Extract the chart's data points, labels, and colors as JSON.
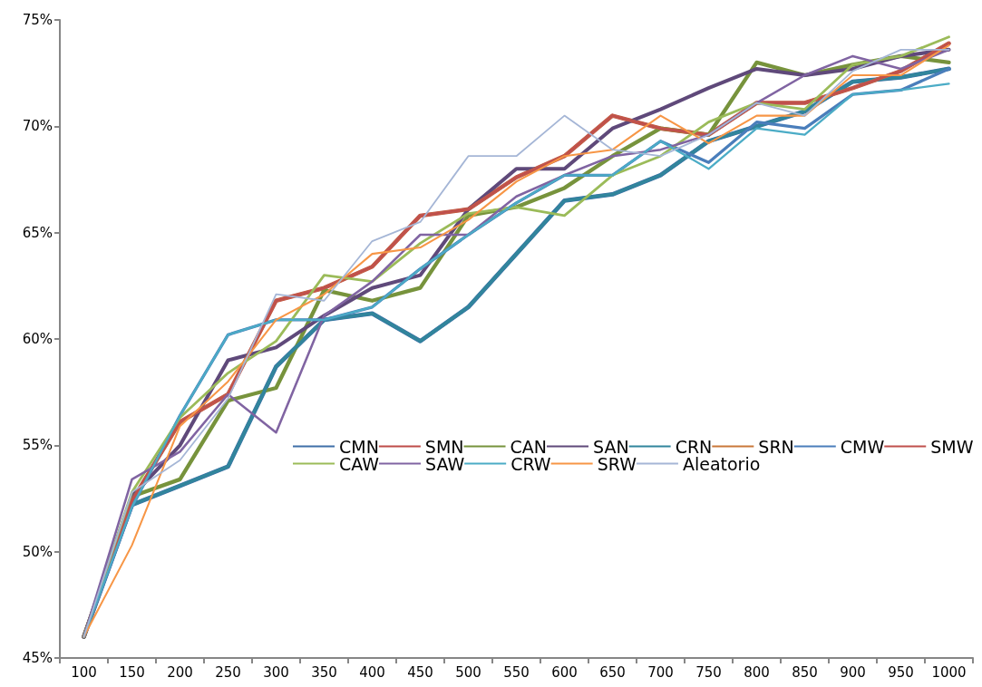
{
  "chart_data": {
    "type": "line",
    "categories": [
      "100",
      "150",
      "200",
      "250",
      "300",
      "350",
      "400",
      "450",
      "500",
      "550",
      "600",
      "650",
      "700",
      "750",
      "800",
      "850",
      "900",
      "950",
      "1000"
    ],
    "ylim": [
      45,
      75
    ],
    "yticks": [
      {
        "value": 45,
        "label": "45%"
      },
      {
        "value": 50,
        "label": "50%"
      },
      {
        "value": 55,
        "label": "55%"
      },
      {
        "value": 60,
        "label": "60%"
      },
      {
        "value": 65,
        "label": "65%"
      },
      {
        "value": 70,
        "label": "70%"
      },
      {
        "value": 75,
        "label": "75%"
      }
    ],
    "grid": false,
    "legend": "bottom",
    "marker": "none",
    "line_style": "solid",
    "series": [
      {
        "name": "CMN",
        "color": "#3f6fa8",
        "values": [
          46.0,
          52.2,
          53.1,
          54.0,
          58.7,
          60.9,
          61.2,
          59.9,
          61.5,
          64.0,
          66.5,
          66.8,
          67.7,
          69.3,
          70.0,
          70.7,
          72.1,
          72.3,
          72.7
        ]
      },
      {
        "name": "SMN",
        "color": "#be4b48",
        "values": [
          46.0,
          52.4,
          56.1,
          57.4,
          61.8,
          62.4,
          63.4,
          65.8,
          66.1,
          67.6,
          68.6,
          70.5,
          69.9,
          69.6,
          71.1,
          71.1,
          71.8,
          72.6,
          73.9
        ]
      },
      {
        "name": "CAN",
        "color": "#77933c",
        "values": [
          46.0,
          52.6,
          53.4,
          57.1,
          57.7,
          62.3,
          61.8,
          62.4,
          65.8,
          66.2,
          67.1,
          68.6,
          69.9,
          69.6,
          73.0,
          72.4,
          72.9,
          73.3,
          73.0
        ]
      },
      {
        "name": "SAN",
        "color": "#5f497a",
        "values": [
          46.0,
          52.6,
          55.0,
          59.0,
          59.6,
          61.1,
          62.4,
          63.0,
          66.1,
          68.0,
          68.0,
          69.9,
          70.8,
          71.8,
          72.7,
          72.4,
          72.7,
          73.3,
          73.6
        ]
      },
      {
        "name": "CRN",
        "color": "#31859c",
        "values": [
          46.0,
          52.2,
          53.1,
          54.0,
          58.7,
          60.9,
          61.2,
          59.9,
          61.5,
          64.0,
          66.5,
          66.8,
          67.7,
          69.3,
          70.0,
          70.7,
          72.1,
          72.3,
          72.7
        ]
      },
      {
        "name": "SRN",
        "color": "#c9783a",
        "values": [
          46.0,
          52.4,
          56.1,
          57.4,
          61.8,
          62.4,
          63.4,
          65.8,
          66.1,
          67.6,
          68.6,
          70.5,
          69.9,
          69.6,
          71.1,
          71.1,
          71.8,
          72.6,
          73.9
        ]
      },
      {
        "name": "CMW",
        "color": "#4a7ebb",
        "values": [
          46.0,
          52.1,
          56.4,
          60.2,
          60.9,
          60.9,
          61.5,
          63.3,
          64.9,
          66.4,
          67.7,
          67.7,
          69.3,
          68.3,
          70.2,
          69.9,
          71.5,
          71.7,
          72.7
        ]
      },
      {
        "name": "SMW",
        "color": "#c0504d",
        "values": [
          46.0,
          52.4,
          56.1,
          57.4,
          61.8,
          62.4,
          63.4,
          65.8,
          66.1,
          67.6,
          68.6,
          70.5,
          69.9,
          69.6,
          71.1,
          71.1,
          71.8,
          72.6,
          73.9
        ]
      },
      {
        "name": "CAW",
        "color": "#9bbb59",
        "values": [
          46.0,
          52.8,
          56.3,
          58.4,
          59.9,
          63.0,
          62.7,
          64.5,
          65.9,
          66.2,
          65.8,
          67.7,
          68.6,
          70.2,
          71.1,
          70.8,
          72.9,
          73.3,
          74.2
        ]
      },
      {
        "name": "SAW",
        "color": "#8064a2",
        "values": [
          46.0,
          53.4,
          54.7,
          57.4,
          55.6,
          61.1,
          62.7,
          64.9,
          64.9,
          66.7,
          67.7,
          68.6,
          68.9,
          69.6,
          71.1,
          72.4,
          73.3,
          72.7,
          73.6
        ]
      },
      {
        "name": "CRW",
        "color": "#4bacc6",
        "values": [
          46.0,
          52.1,
          56.4,
          60.2,
          60.9,
          60.9,
          61.5,
          63.3,
          64.9,
          66.4,
          67.7,
          67.7,
          69.3,
          68.0,
          69.9,
          69.6,
          71.5,
          71.7,
          72.0
        ]
      },
      {
        "name": "SRW",
        "color": "#f79646",
        "values": [
          46.0,
          50.3,
          55.9,
          58.0,
          60.9,
          62.1,
          64.0,
          64.3,
          65.6,
          67.4,
          68.6,
          68.9,
          70.5,
          69.2,
          70.5,
          70.5,
          72.4,
          72.4,
          73.8
        ]
      },
      {
        "name": "Aleatorio",
        "color": "#a5b6d6",
        "values": [
          46.0,
          52.8,
          54.3,
          57.2,
          62.1,
          61.8,
          64.6,
          65.5,
          68.6,
          68.6,
          70.5,
          68.9,
          68.6,
          69.6,
          71.1,
          70.5,
          72.6,
          73.6,
          73.6
        ]
      }
    ]
  }
}
